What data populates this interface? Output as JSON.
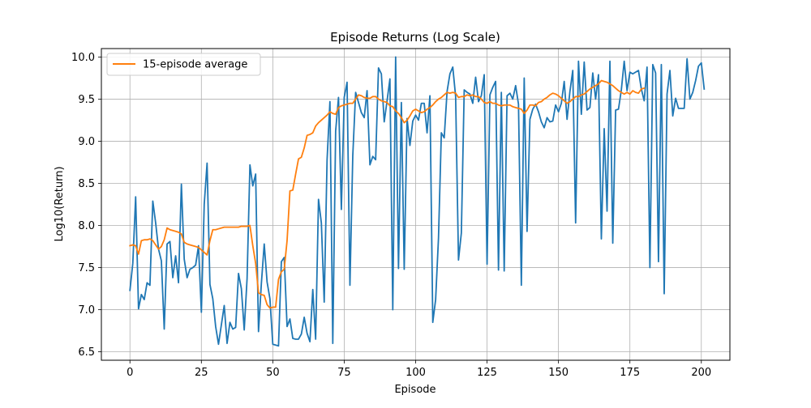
{
  "chart_data": {
    "type": "line",
    "title": "Episode Returns (Log Scale)",
    "xlabel": "Episode",
    "ylabel": "Log10(Return)",
    "xlim": [
      -10,
      210
    ],
    "ylim": [
      6.4,
      10.1
    ],
    "xticks": [
      0,
      25,
      50,
      75,
      100,
      125,
      150,
      175,
      200
    ],
    "xtick_labels": [
      "0",
      "25",
      "50",
      "75",
      "100",
      "125",
      "150",
      "175",
      "200"
    ],
    "yticks": [
      6.5,
      7.0,
      7.5,
      8.0,
      8.5,
      9.0,
      9.5,
      10.0
    ],
    "ytick_labels": [
      "6.5",
      "7.0",
      "7.5",
      "8.0",
      "8.5",
      "9.0",
      "9.5",
      "10.0"
    ],
    "grid": true,
    "legend_location": "upper left",
    "colors": {
      "raw": "#1f77b4",
      "average": "#ff7f0e"
    },
    "series": [
      {
        "name": "",
        "color": "#1f77b4",
        "x_start": 0,
        "values": [
          7.23,
          7.55,
          8.34,
          7.01,
          7.18,
          7.12,
          7.32,
          7.29,
          8.29,
          8.03,
          7.72,
          7.58,
          6.77,
          7.78,
          7.81,
          7.38,
          7.64,
          7.32,
          8.49,
          7.6,
          7.38,
          7.48,
          7.5,
          7.53,
          7.76,
          6.97,
          8.25,
          8.74,
          7.3,
          7.13,
          6.8,
          6.59,
          6.82,
          7.05,
          6.6,
          6.85,
          6.77,
          6.79,
          7.43,
          7.25,
          6.76,
          7.37,
          8.72,
          8.47,
          8.61,
          6.74,
          7.31,
          7.78,
          7.33,
          7.13,
          6.59,
          6.58,
          6.57,
          7.57,
          7.62,
          6.8,
          6.89,
          6.66,
          6.65,
          6.65,
          6.71,
          6.91,
          6.72,
          6.62,
          7.24,
          6.65,
          8.31,
          8.03,
          7.09,
          8.78,
          9.47,
          6.6,
          9.12,
          9.52,
          8.19,
          9.52,
          9.7,
          7.29,
          8.83,
          9.58,
          9.46,
          9.34,
          9.28,
          9.6,
          8.72,
          8.82,
          8.78,
          9.87,
          9.8,
          9.23,
          9.48,
          9.74,
          7.0,
          10.0,
          7.49,
          9.46,
          7.48,
          9.27,
          8.95,
          9.24,
          9.31,
          9.25,
          9.45,
          9.45,
          9.1,
          9.54,
          6.85,
          7.12,
          7.85,
          9.1,
          9.04,
          9.59,
          9.8,
          9.88,
          9.53,
          7.59,
          7.91,
          9.61,
          9.58,
          9.56,
          9.45,
          9.76,
          9.47,
          9.54,
          9.79,
          7.54,
          9.55,
          9.64,
          9.71,
          7.47,
          9.58,
          7.46,
          9.54,
          9.57,
          9.5,
          9.66,
          9.44,
          7.29,
          9.75,
          7.93,
          9.26,
          9.38,
          9.44,
          9.35,
          9.23,
          9.16,
          9.28,
          9.23,
          9.24,
          9.43,
          9.35,
          9.45,
          9.71,
          9.26,
          9.59,
          9.84,
          8.03,
          9.95,
          9.32,
          9.94,
          9.37,
          9.4,
          9.81,
          9.5,
          9.79,
          7.84,
          9.15,
          8.17,
          9.95,
          7.79,
          9.37,
          9.38,
          9.61,
          9.95,
          9.6,
          9.82,
          9.8,
          9.82,
          9.84,
          9.62,
          9.48,
          9.88,
          7.5,
          9.91,
          9.81,
          7.57,
          9.91,
          7.19,
          9.56,
          9.84,
          9.3,
          9.51,
          9.39,
          9.39,
          9.39,
          9.98,
          9.5,
          9.58,
          9.72,
          9.89,
          9.93,
          9.62
        ]
      },
      {
        "name": "15-episode average",
        "color": "#ff7f0e",
        "x_start": 0,
        "values": [
          7.76,
          7.77,
          7.76,
          7.66,
          7.82,
          7.83,
          7.83,
          7.84,
          7.82,
          7.77,
          7.72,
          7.75,
          7.83,
          7.97,
          7.95,
          7.94,
          7.93,
          7.92,
          7.9,
          7.8,
          7.78,
          7.77,
          7.76,
          7.75,
          7.74,
          7.71,
          7.68,
          7.65,
          7.82,
          7.95,
          7.95,
          7.96,
          7.97,
          7.98,
          7.98,
          7.98,
          7.98,
          7.98,
          7.98,
          7.99,
          7.99,
          7.99,
          8.0,
          7.76,
          7.55,
          7.2,
          7.18,
          7.17,
          7.06,
          7.02,
          7.03,
          7.03,
          7.36,
          7.45,
          7.48,
          7.82,
          8.41,
          8.42,
          8.61,
          8.79,
          8.81,
          8.92,
          9.07,
          9.08,
          9.1,
          9.18,
          9.22,
          9.25,
          9.28,
          9.31,
          9.35,
          9.33,
          9.32,
          9.4,
          9.42,
          9.43,
          9.44,
          9.45,
          9.45,
          9.5,
          9.55,
          9.54,
          9.52,
          9.51,
          9.51,
          9.53,
          9.53,
          9.5,
          9.48,
          9.47,
          9.46,
          9.42,
          9.41,
          9.36,
          9.33,
          9.28,
          9.22,
          9.25,
          9.3,
          9.36,
          9.38,
          9.36,
          9.34,
          9.35,
          9.38,
          9.4,
          9.43,
          9.47,
          9.5,
          9.52,
          9.55,
          9.58,
          9.57,
          9.58,
          9.57,
          9.52,
          9.53,
          9.53,
          9.55,
          9.54,
          9.55,
          9.53,
          9.53,
          9.5,
          9.46,
          9.45,
          9.47,
          9.45,
          9.45,
          9.43,
          9.42,
          9.43,
          9.43,
          9.43,
          9.41,
          9.4,
          9.39,
          9.38,
          9.33,
          9.37,
          9.43,
          9.43,
          9.42,
          9.46,
          9.47,
          9.5,
          9.52,
          9.55,
          9.57,
          9.56,
          9.54,
          9.51,
          9.48,
          9.45,
          9.47,
          9.5,
          9.53,
          9.53,
          9.55,
          9.56,
          9.59,
          9.62,
          9.64,
          9.66,
          9.68,
          9.72,
          9.71,
          9.7,
          9.68,
          9.66,
          9.63,
          9.6,
          9.58,
          9.56,
          9.58,
          9.56,
          9.6,
          9.58,
          9.57,
          9.62,
          9.63
        ]
      }
    ]
  }
}
